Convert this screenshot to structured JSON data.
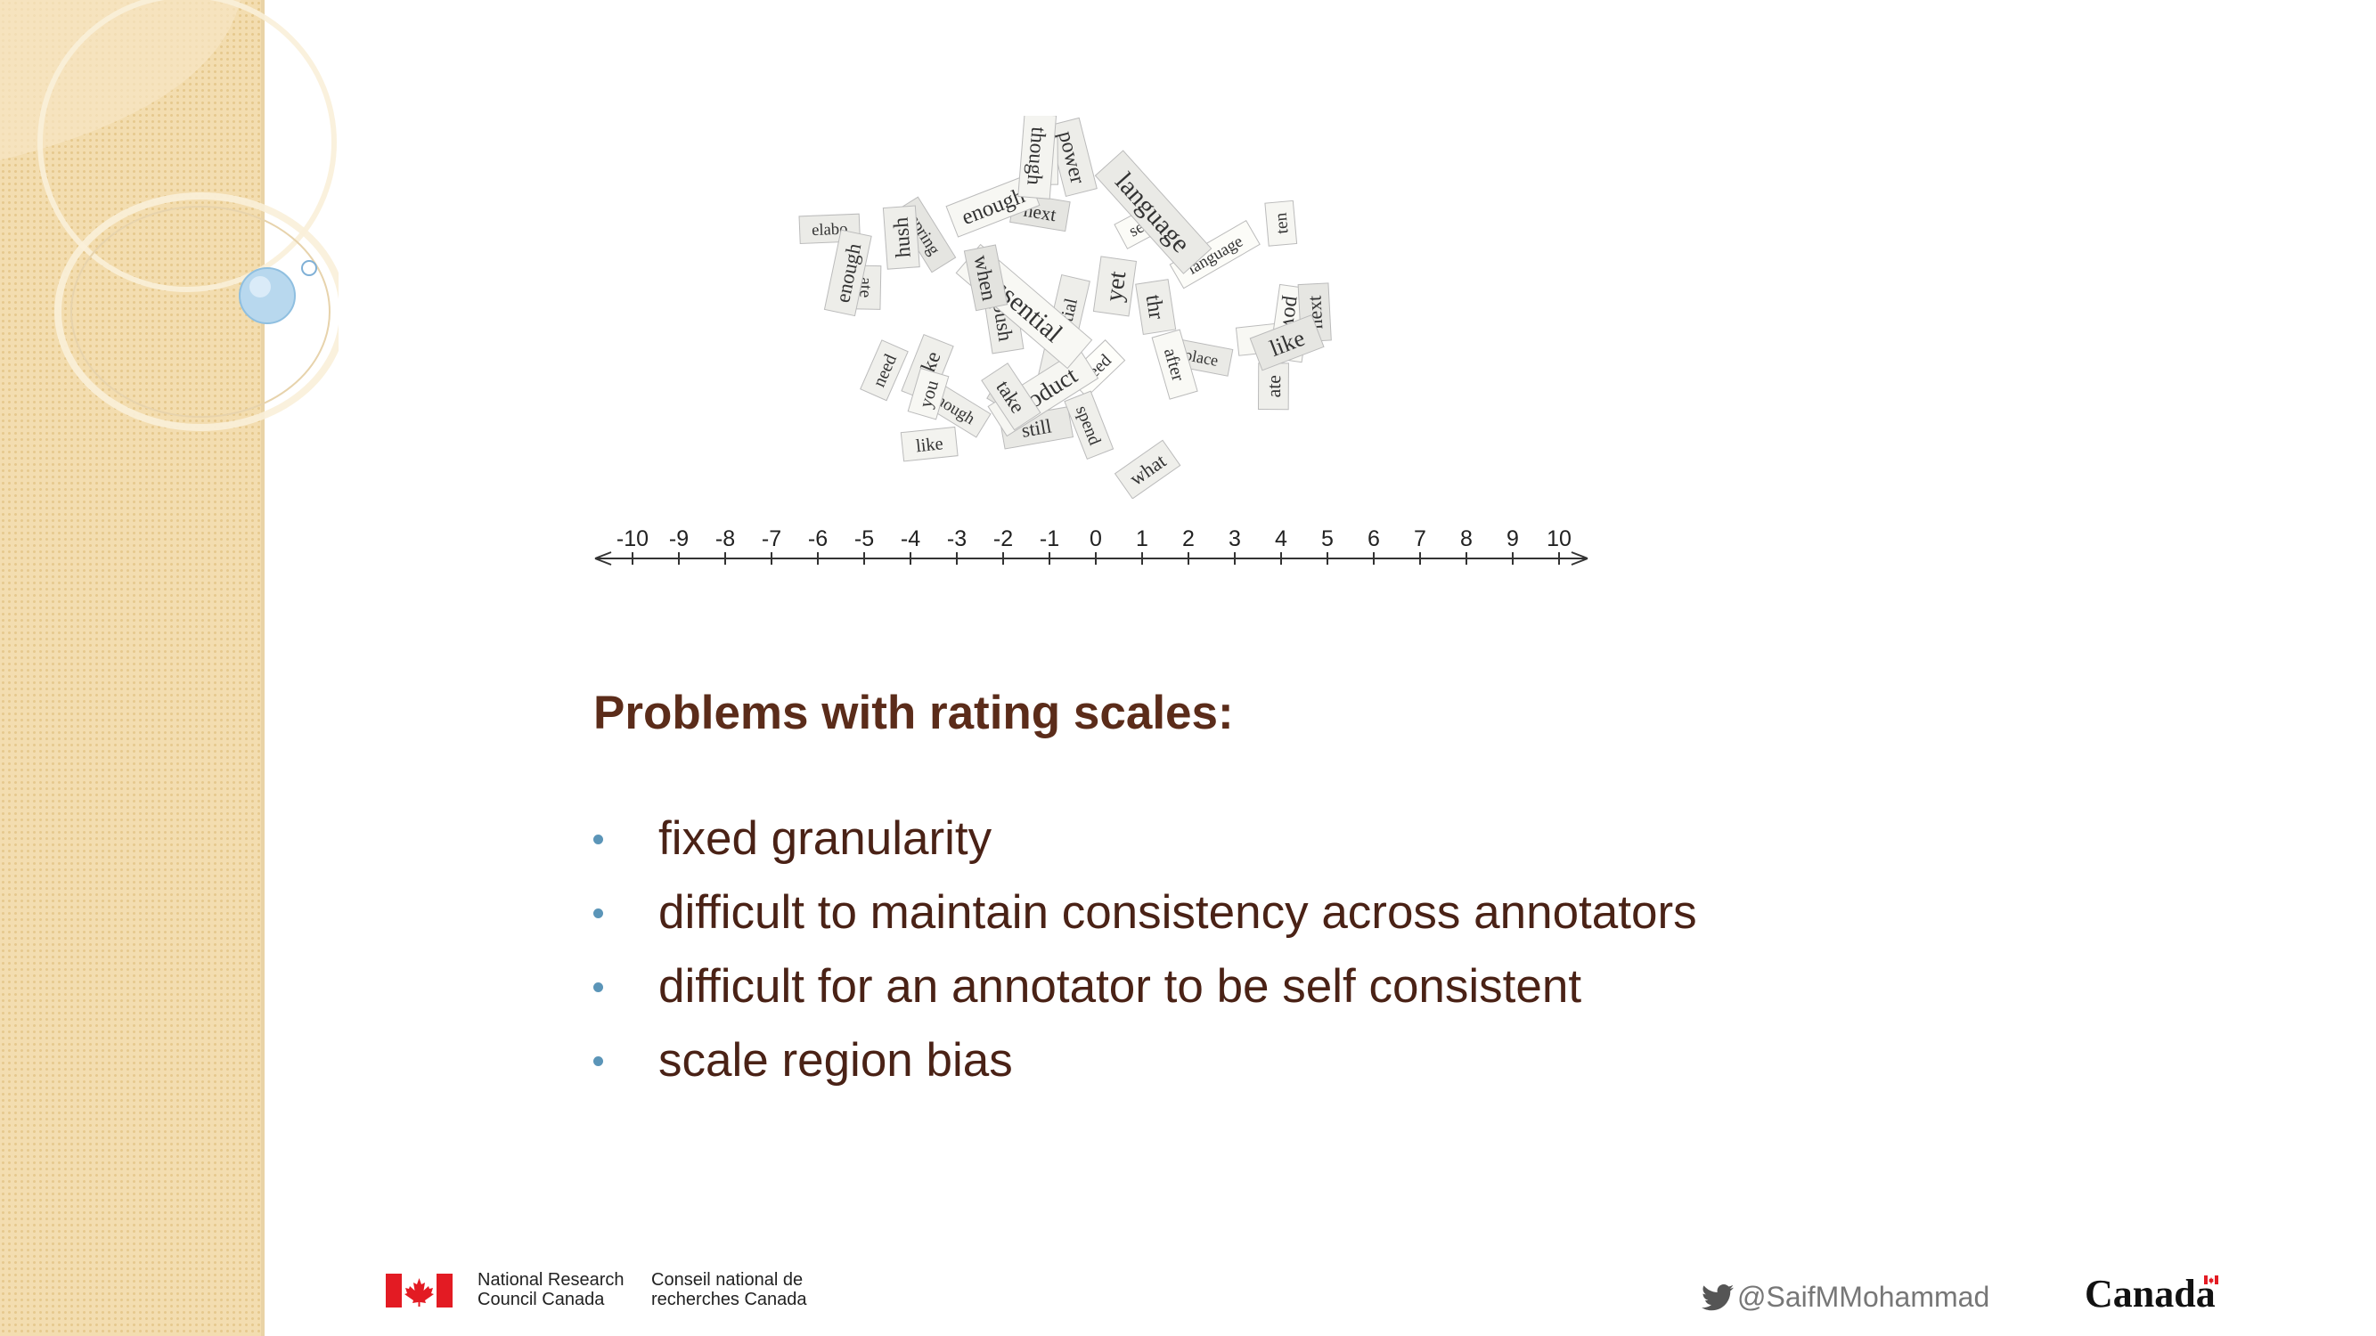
{
  "slide": {
    "heading": "Problems with rating scales:",
    "bullets": [
      "fixed granularity",
      "difficult to maintain consistency across annotators",
      "difficult for an annotator to be self consistent",
      "scale region bias"
    ]
  },
  "number_line": {
    "ticks": [
      "-10",
      "-9",
      "-8",
      "-7",
      "-6",
      "-5",
      "-4",
      "-3",
      "-2",
      "-1",
      "0",
      "1",
      "2",
      "3",
      "4",
      "5",
      "6",
      "7",
      "8",
      "9",
      "10"
    ]
  },
  "word_pile": {
    "words": [
      "essential",
      "power",
      "though",
      "take",
      "ate",
      "need",
      "next",
      "language",
      "like",
      "when",
      "can",
      "what",
      "still",
      "you",
      "place",
      "enough",
      "yet",
      "store",
      "ten",
      "after",
      "spend",
      "elabo",
      "spring",
      "enough",
      "product",
      "send",
      "hush",
      "push",
      "thr"
    ]
  },
  "footer": {
    "org_en_line1": "National Research",
    "org_en_line2": "Council Canada",
    "org_fr_line1": "Conseil national de",
    "org_fr_line2": "recherches Canada",
    "twitter_handle": "@SaifMMohammad",
    "canada_wordmark": "Canada"
  },
  "colors": {
    "heading": "#5b2c1a",
    "body_text": "#4a2216",
    "bullet": "#5b95b8",
    "sidebar": "#f3ddb0",
    "flag_red": "#e31b23"
  },
  "icons": {
    "twitter": "twitter-bird-icon",
    "flag": "canada-flag-icon"
  }
}
